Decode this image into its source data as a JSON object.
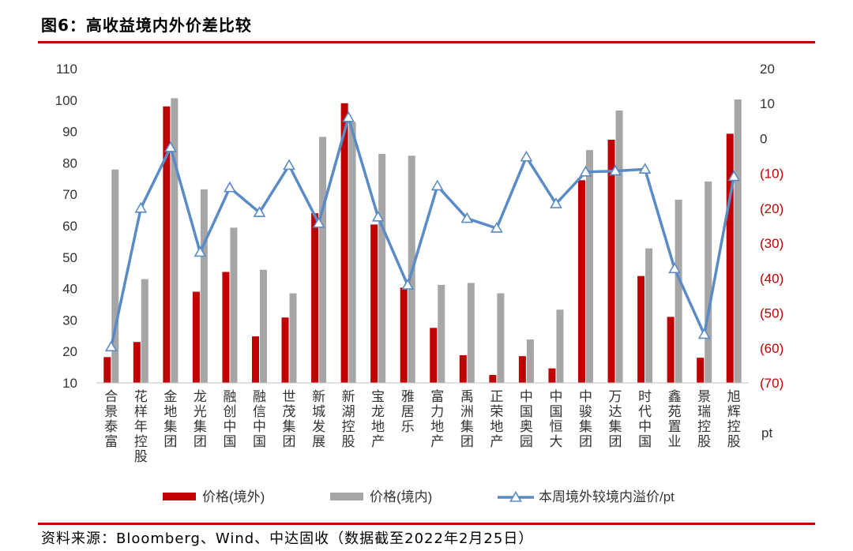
{
  "page": {
    "title": "图6：高收益境内外价差比较",
    "source": "资料来源：Bloomberg、Wind、中达固收（数据截至2022年2月25日）"
  },
  "colors": {
    "rule": "#c00000",
    "bar_overseas": "#c00000",
    "bar_domestic": "#a6a6a6",
    "line": "#5b8bc5",
    "axis_right_negative": "#c00000"
  },
  "chart_data": {
    "type": "bar+line",
    "categories": [
      "合景泰富",
      "花样年控股",
      "金地集团",
      "龙光集团",
      "融创中国",
      "融信中国",
      "世茂集团",
      "新城发展",
      "新湖控股",
      "宝龙地产",
      "雅居乐",
      "富力地产",
      "禹洲集团",
      "正荣地产",
      "中国奥园",
      "中国恒大",
      "中骏集团",
      "万达集团",
      "时代中国",
      "鑫苑置业",
      "景瑞控股",
      "旭辉控股"
    ],
    "series": [
      {
        "name": "价格(境外)",
        "type": "bar",
        "axis": "left",
        "values": [
          18.2,
          23,
          98,
          39,
          45.3,
          24.8,
          30.8,
          64,
          99,
          60.4,
          40.3,
          27.5,
          18.8,
          12.5,
          18.5,
          14.6,
          74.5,
          87.4,
          44,
          31,
          18,
          89.3
        ]
      },
      {
        "name": "价格(境内)",
        "type": "bar",
        "axis": "left",
        "values": [
          77.9,
          43,
          100.6,
          71.6,
          59.4,
          46,
          38.5,
          88.3,
          93,
          82.9,
          82.3,
          41.2,
          41.8,
          38.5,
          23.8,
          33.3,
          84.1,
          96.7,
          52.8,
          68.3,
          74.1,
          100.2
        ]
      },
      {
        "name": "本周境外较境内溢价/pt",
        "type": "line",
        "axis": "right",
        "values": [
          -59.7,
          -20,
          -2.6,
          -32.6,
          -14.1,
          -21.2,
          -7.7,
          -24.3,
          6,
          -22.5,
          -42,
          -13.6,
          -22.9,
          -25.7,
          -5.3,
          -18.7,
          -9.6,
          -9.3,
          -8.8,
          -37.3,
          -56.1,
          -10.9
        ]
      }
    ],
    "y_left": {
      "min": 10,
      "max": 110,
      "step": 10,
      "ticks": [
        "10",
        "20",
        "30",
        "40",
        "50",
        "60",
        "70",
        "80",
        "90",
        "100",
        "110"
      ]
    },
    "y_right": {
      "min": -70,
      "max": 20,
      "step": 10,
      "ticks": [
        "(70)",
        "(60)",
        "(50)",
        "(40)",
        "(30)",
        "(20)",
        "(10)",
        "0",
        "10",
        "20"
      ],
      "unit_label": "pt"
    },
    "legend": [
      "价格(境外)",
      "价格(境内)",
      "本周境外较境内溢价/pt"
    ],
    "legend_position": "bottom",
    "grid": false
  }
}
